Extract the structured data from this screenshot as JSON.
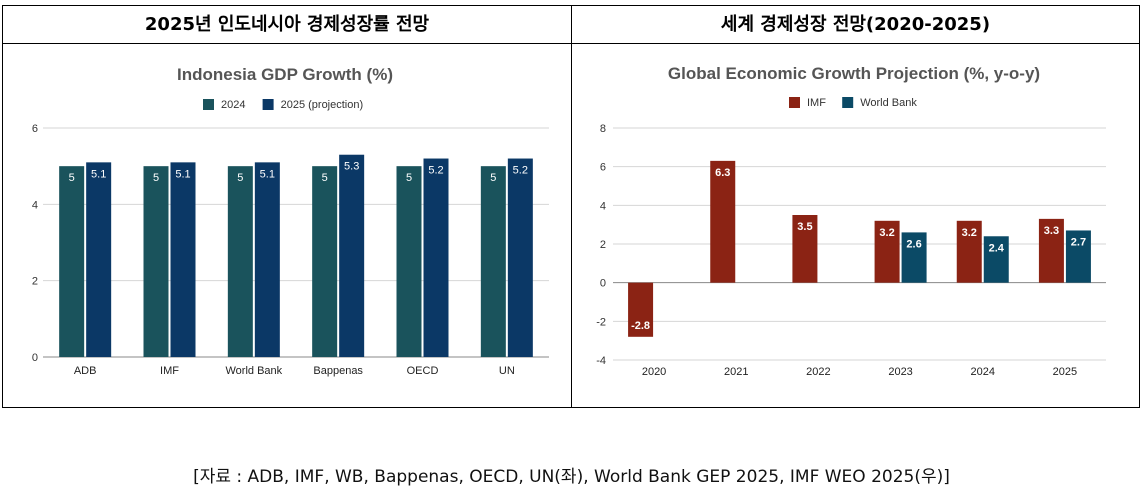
{
  "panels": {
    "left_title": "2025년 인도네시아 경제성장률 전망",
    "right_title": "세계 경제성장 전망(2020-2025)"
  },
  "source_note": "[자료 : ADB, IMF, WB, Bappenas, OECD, UN(좌), World Bank GEP 2025, IMF WEO 2025(우)]",
  "chart_data": [
    {
      "type": "bar",
      "title": "Indonesia GDP Growth (%)",
      "xlabel": "",
      "ylabel": "",
      "categories": [
        "ADB",
        "IMF",
        "World Bank",
        "Bappenas",
        "OECD",
        "UN"
      ],
      "series": [
        {
          "name": "2024",
          "color": "#1a535c",
          "values": [
            5,
            5,
            5,
            5,
            5,
            5
          ],
          "labels": [
            "5",
            "5",
            "5",
            "5",
            "5",
            "5"
          ]
        },
        {
          "name": "2025 (projection)",
          "color": "#0b3866",
          "values": [
            5.1,
            5.1,
            5.1,
            5.3,
            5.2,
            5.2
          ],
          "labels": [
            "5.1",
            "5.1",
            "5.1",
            "5.3",
            "5.2",
            "5.2"
          ]
        }
      ],
      "ylim": [
        0,
        6
      ],
      "yticks": [
        0,
        2,
        4,
        6
      ],
      "grid": true,
      "legend": "top"
    },
    {
      "type": "bar",
      "title": "Global Economic Growth Projection (%, y-o-y)",
      "xlabel": "",
      "ylabel": "",
      "categories": [
        "2020",
        "2021",
        "2022",
        "2023",
        "2024",
        "2025"
      ],
      "series": [
        {
          "name": "IMF",
          "color": "#8b2314",
          "values": [
            -2.8,
            6.3,
            3.5,
            3.2,
            3.2,
            3.3
          ],
          "labels": [
            "-2.8",
            "6.3",
            "3.5",
            "3.2",
            "3.2",
            "3.3"
          ]
        },
        {
          "name": "World Bank",
          "color": "#0b4a66",
          "values": [
            null,
            null,
            null,
            2.6,
            2.4,
            2.7
          ],
          "labels": [
            "",
            "",
            "",
            "2.6",
            "2.4",
            "2.7"
          ]
        }
      ],
      "ylim": [
        -4,
        8
      ],
      "yticks": [
        -4,
        -2,
        0,
        2,
        4,
        6,
        8
      ],
      "grid": true,
      "legend": "top"
    }
  ]
}
